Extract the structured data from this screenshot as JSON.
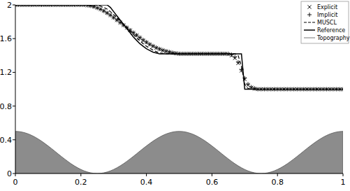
{
  "chart_data": {
    "type": "line",
    "xlim": [
      0,
      1
    ],
    "ylim": [
      0,
      2
    ],
    "xticks": [
      0,
      0.2,
      0.4,
      0.6,
      0.8,
      1
    ],
    "yticks": [
      0,
      0.4,
      0.8,
      1.2,
      1.6,
      2
    ],
    "grid": false,
    "legend": "top-right",
    "x": [
      0,
      0.01,
      0.02,
      0.03,
      0.04,
      0.05,
      0.06,
      0.07,
      0.08,
      0.09,
      0.1,
      0.11,
      0.12,
      0.13,
      0.14,
      0.15,
      0.16,
      0.17,
      0.18,
      0.19,
      0.2,
      0.21,
      0.22,
      0.23,
      0.24,
      0.25,
      0.26,
      0.27,
      0.28,
      0.29,
      0.3,
      0.31,
      0.32,
      0.33,
      0.34,
      0.35,
      0.36,
      0.37,
      0.38,
      0.39,
      0.4,
      0.41,
      0.42,
      0.43,
      0.44,
      0.45,
      0.46,
      0.47,
      0.48,
      0.49,
      0.5,
      0.51,
      0.52,
      0.53,
      0.54,
      0.55,
      0.56,
      0.57,
      0.58,
      0.59,
      0.6,
      0.61,
      0.62,
      0.63,
      0.64,
      0.65,
      0.66,
      0.67,
      0.68,
      0.69,
      0.7,
      0.71,
      0.72,
      0.73,
      0.74,
      0.75,
      0.76,
      0.77,
      0.78,
      0.79,
      0.8,
      0.81,
      0.82,
      0.83,
      0.84,
      0.85,
      0.86,
      0.87,
      0.88,
      0.89,
      0.9,
      0.91,
      0.92,
      0.93,
      0.94,
      0.95,
      0.96,
      0.97,
      0.98,
      0.99,
      1
    ],
    "series": [
      {
        "name": "Topography",
        "type": "area",
        "color": "#8c8c8c",
        "values": [
          0.5,
          0.498,
          0.492,
          0.482,
          0.469,
          0.452,
          0.432,
          0.409,
          0.384,
          0.356,
          0.327,
          0.297,
          0.266,
          0.234,
          0.203,
          0.173,
          0.144,
          0.116,
          0.091,
          0.068,
          0.048,
          0.031,
          0.018,
          0.008,
          0.002,
          0,
          0.002,
          0.008,
          0.018,
          0.031,
          0.048,
          0.068,
          0.091,
          0.116,
          0.144,
          0.173,
          0.203,
          0.234,
          0.266,
          0.297,
          0.327,
          0.356,
          0.384,
          0.409,
          0.432,
          0.452,
          0.469,
          0.482,
          0.492,
          0.498,
          0.5,
          0.498,
          0.492,
          0.482,
          0.469,
          0.452,
          0.432,
          0.409,
          0.384,
          0.356,
          0.327,
          0.297,
          0.266,
          0.234,
          0.203,
          0.173,
          0.144,
          0.116,
          0.091,
          0.068,
          0.048,
          0.031,
          0.018,
          0.008,
          0.002,
          0,
          0.002,
          0.008,
          0.018,
          0.031,
          0.048,
          0.068,
          0.091,
          0.116,
          0.144,
          0.173,
          0.203,
          0.234,
          0.266,
          0.297,
          0.327,
          0.356,
          0.384,
          0.409,
          0.432,
          0.452,
          0.469,
          0.482,
          0.492,
          0.498,
          0.5
        ]
      },
      {
        "name": "MUSCL",
        "type": "line",
        "color": "#000000",
        "line_style": "dashed",
        "values": [
          2,
          2,
          2,
          2,
          2,
          2,
          2,
          2,
          2,
          2,
          2,
          2,
          2,
          2,
          2,
          2,
          2,
          2,
          2,
          2,
          2,
          2,
          2,
          2,
          2,
          1.995,
          1.985,
          1.97,
          1.95,
          1.92,
          1.885,
          1.85,
          1.81,
          1.77,
          1.73,
          1.69,
          1.65,
          1.61,
          1.575,
          1.54,
          1.51,
          1.485,
          1.465,
          1.445,
          1.43,
          1.425,
          1.42,
          1.42,
          1.42,
          1.42,
          1.42,
          1.42,
          1.42,
          1.42,
          1.42,
          1.42,
          1.42,
          1.42,
          1.42,
          1.42,
          1.42,
          1.42,
          1.42,
          1.42,
          1.42,
          1.42,
          1.42,
          1.42,
          1.4,
          1.27,
          1.06,
          1.01,
          1,
          1,
          1,
          1,
          1,
          1,
          1,
          1,
          1,
          1,
          1,
          1,
          1,
          1,
          1,
          1,
          1,
          1,
          1,
          1,
          1,
          1,
          1,
          1,
          1,
          1,
          1,
          1,
          1
        ]
      },
      {
        "name": "Reference",
        "type": "line",
        "color": "#000000",
        "line_style": "solid",
        "values": [
          2,
          2,
          2,
          2,
          2,
          2,
          2,
          2,
          2,
          2,
          2,
          2,
          2,
          2,
          2,
          2,
          2,
          2,
          2,
          2,
          2,
          2,
          2,
          2,
          2,
          2,
          2,
          2,
          2,
          1.97,
          1.92,
          1.87,
          1.82,
          1.77,
          1.72,
          1.67,
          1.62,
          1.58,
          1.54,
          1.51,
          1.48,
          1.46,
          1.44,
          1.43,
          1.42,
          1.42,
          1.42,
          1.42,
          1.42,
          1.42,
          1.42,
          1.42,
          1.42,
          1.42,
          1.42,
          1.42,
          1.42,
          1.42,
          1.42,
          1.42,
          1.42,
          1.42,
          1.42,
          1.42,
          1.42,
          1.42,
          1.42,
          1.42,
          1.42,
          1.42,
          1,
          1,
          1,
          1,
          1,
          1,
          1,
          1,
          1,
          1,
          1,
          1,
          1,
          1,
          1,
          1,
          1,
          1,
          1,
          1,
          1,
          1,
          1,
          1,
          1,
          1,
          1,
          1,
          1,
          1,
          1
        ]
      },
      {
        "name": "Explicit",
        "type": "scatter",
        "color": "#000000",
        "marker": "x",
        "values": [
          2,
          2,
          2,
          2,
          2,
          2,
          2,
          2,
          2,
          2,
          2,
          2,
          2,
          2,
          2,
          2,
          2,
          2,
          2,
          2,
          2,
          2,
          1.995,
          1.99,
          1.98,
          1.965,
          1.95,
          1.93,
          1.905,
          1.88,
          1.85,
          1.82,
          1.79,
          1.76,
          1.73,
          1.7,
          1.67,
          1.64,
          1.61,
          1.58,
          1.555,
          1.53,
          1.51,
          1.49,
          1.475,
          1.46,
          1.45,
          1.44,
          1.43,
          1.425,
          1.42,
          1.42,
          1.42,
          1.42,
          1.42,
          1.42,
          1.42,
          1.42,
          1.42,
          1.42,
          1.42,
          1.42,
          1.42,
          1.42,
          1.42,
          1.415,
          1.4,
          1.37,
          1.31,
          1.22,
          1.12,
          1.05,
          1.02,
          1.005,
          1,
          1,
          1,
          1,
          1,
          1,
          1,
          1,
          1,
          1,
          1,
          1,
          1,
          1,
          1,
          1,
          1,
          1,
          1,
          1,
          1,
          1,
          1,
          1,
          1,
          1,
          1
        ]
      },
      {
        "name": "Implicit",
        "type": "scatter",
        "color": "#000000",
        "marker": "+",
        "values": [
          2,
          2,
          2,
          2,
          2,
          2,
          2,
          2,
          2,
          2,
          2,
          2,
          2,
          2,
          2,
          2,
          2,
          2,
          2,
          2,
          2,
          2,
          1.995,
          1.988,
          1.978,
          1.963,
          1.947,
          1.927,
          1.903,
          1.878,
          1.849,
          1.82,
          1.79,
          1.76,
          1.731,
          1.701,
          1.671,
          1.642,
          1.613,
          1.585,
          1.559,
          1.534,
          1.513,
          1.494,
          1.478,
          1.464,
          1.452,
          1.442,
          1.433,
          1.426,
          1.42,
          1.42,
          1.42,
          1.42,
          1.42,
          1.42,
          1.42,
          1.42,
          1.42,
          1.42,
          1.42,
          1.42,
          1.42,
          1.42,
          1.42,
          1.42,
          1.41,
          1.38,
          1.32,
          1.23,
          1.13,
          1.06,
          1.025,
          1.01,
          1,
          1,
          1,
          1,
          1,
          1,
          1,
          1,
          1,
          1,
          1,
          1,
          1,
          1,
          1,
          1,
          1,
          1,
          1,
          1,
          1,
          1,
          1,
          1,
          1,
          1,
          1
        ]
      }
    ]
  }
}
